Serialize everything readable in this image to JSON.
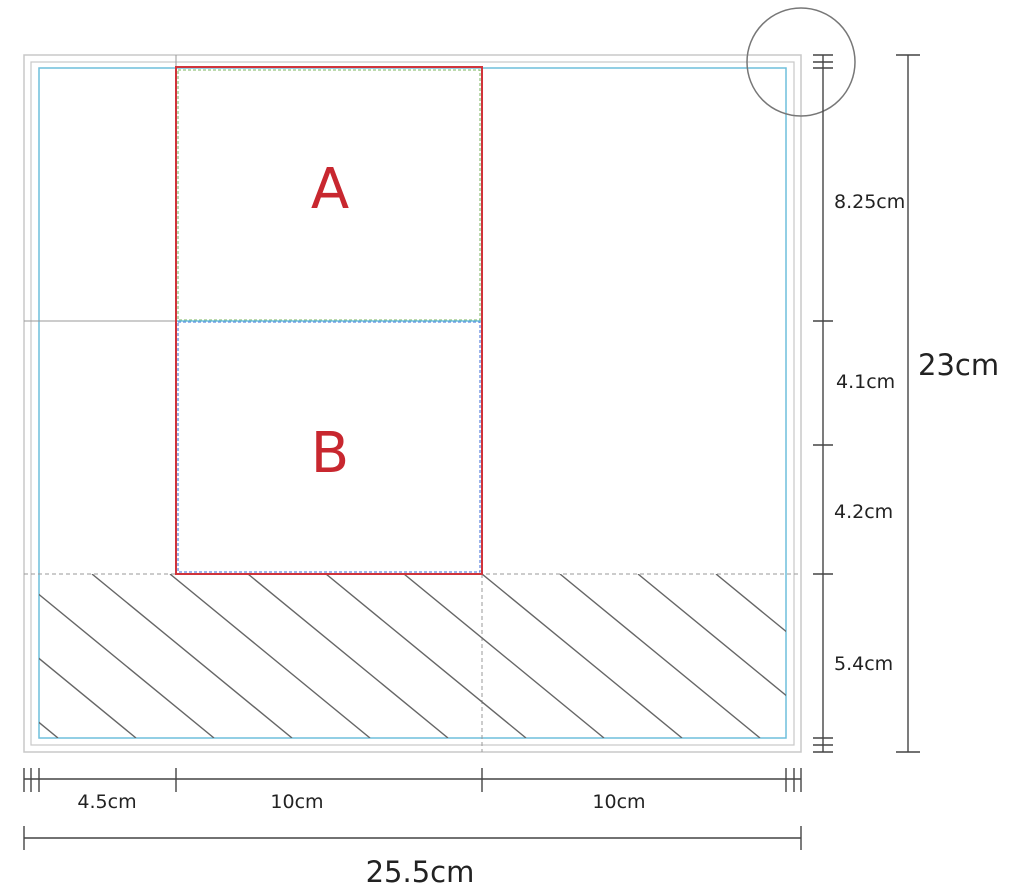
{
  "labels": {
    "panel_a": "A",
    "panel_b": "B"
  },
  "dimensions": {
    "width_left": "4.5cm",
    "width_mid": "10cm",
    "width_right": "10cm",
    "width_total": "25.5cm",
    "height_top": "8.25cm",
    "height_2": "4.1cm",
    "height_3": "4.2cm",
    "height_bottom": "5.4cm",
    "height_total": "23cm"
  },
  "colors": {
    "panel_outline": "#d0343b",
    "panel_label": "#c8272f",
    "bleed_line": "#6fbfdc",
    "frame_line": "#c8c8c8",
    "guide_line": "#999999",
    "hatch_line": "#666666",
    "dimension_line": "#444444",
    "panel_a_dash": "#7ab55c",
    "panel_b_dash": "#3a6bd8"
  }
}
